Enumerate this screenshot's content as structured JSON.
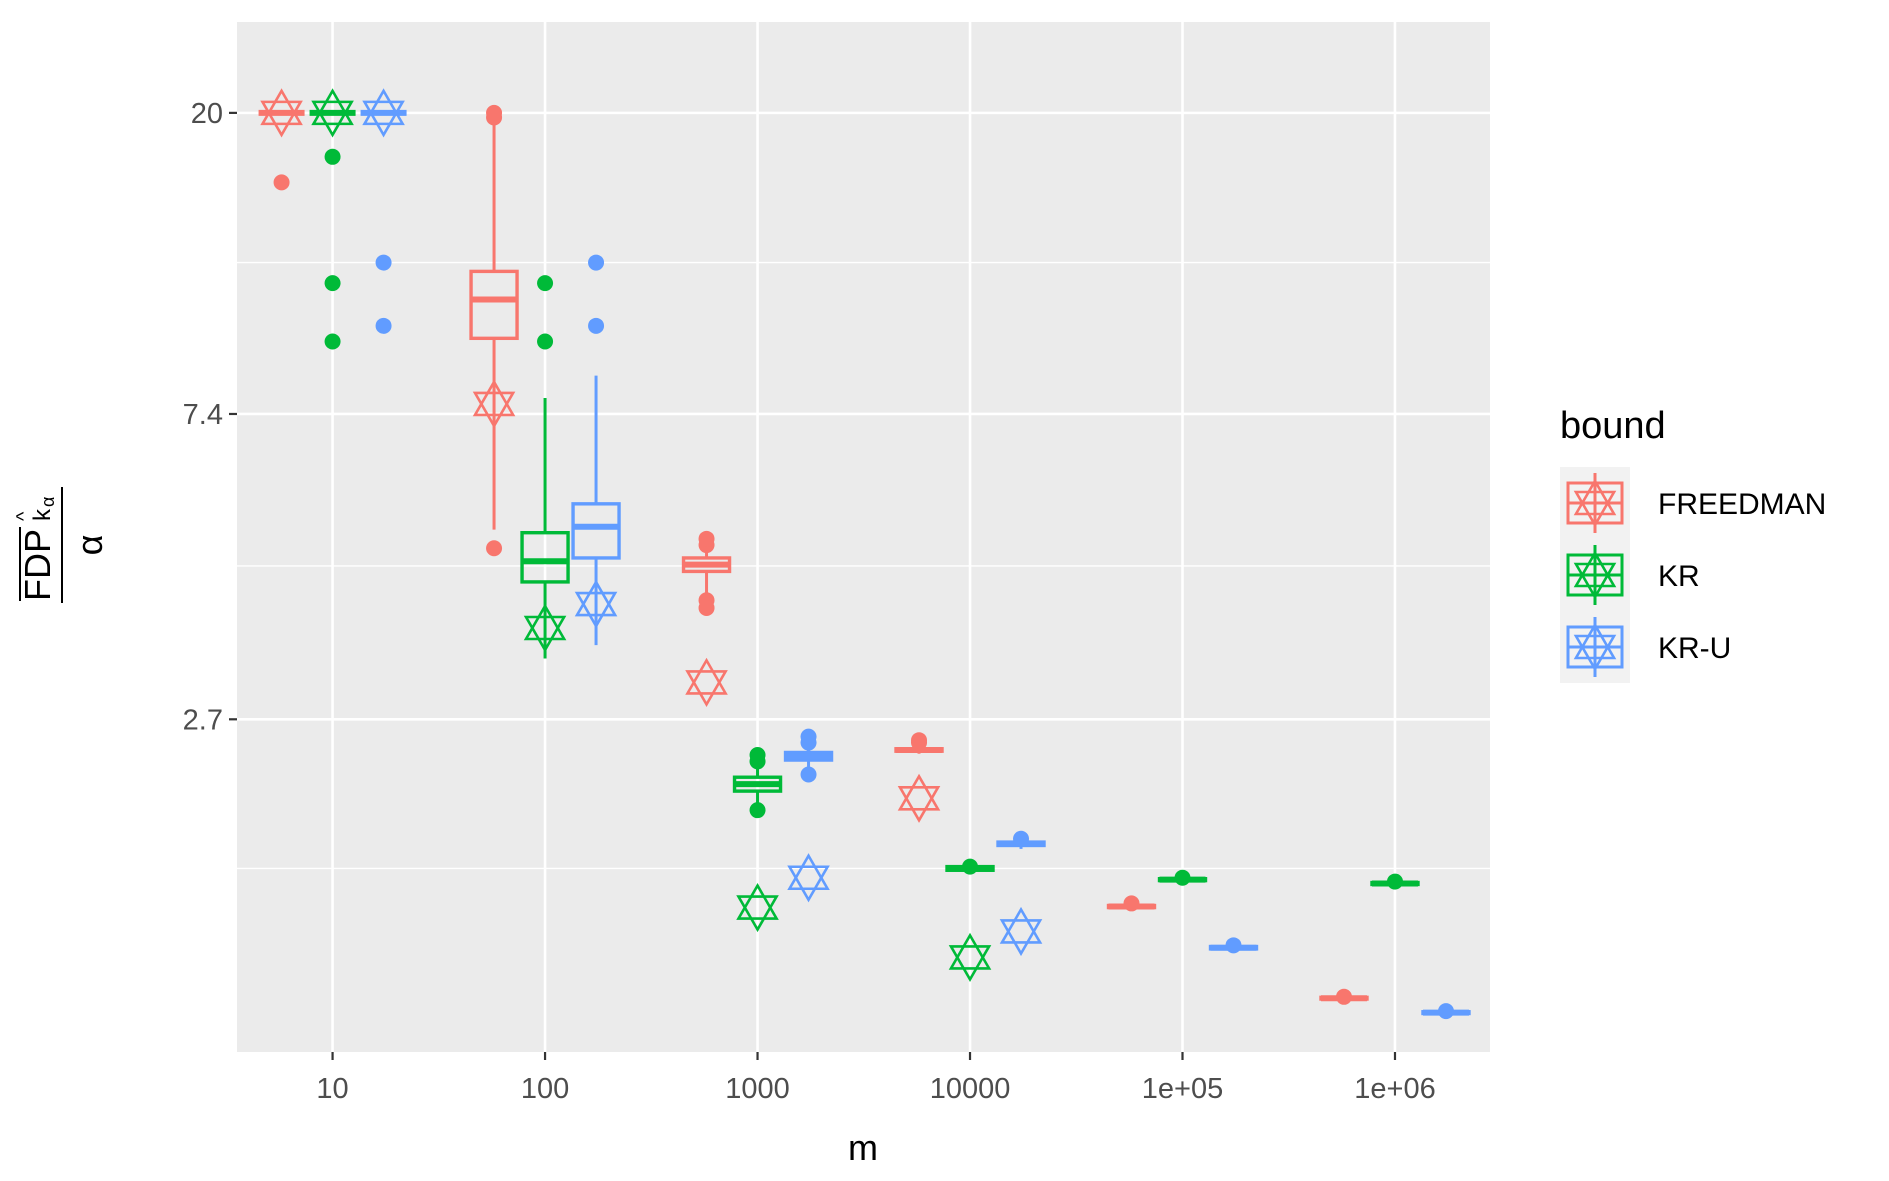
{
  "chart_data": {
    "type": "box",
    "xlabel": "m",
    "ylabel_parts": {
      "main": "FDP",
      "sub": "k",
      "subsub": "α",
      "hat": "^",
      "denominator": "α"
    },
    "x_scale": "log10",
    "y_scale": "log",
    "x_tick_labels": [
      {
        "x": 10,
        "label": "10"
      },
      {
        "x": 100,
        "label": "100"
      },
      {
        "x": 1000,
        "label": "1000"
      },
      {
        "x": 10000,
        "label": "10000"
      },
      {
        "x": 100000,
        "label": "1e+05"
      },
      {
        "x": 1000000,
        "label": "1e+06"
      }
    ],
    "y_tick_labels": [
      {
        "y": 2.7,
        "label": "2.7"
      },
      {
        "y": 7.4,
        "label": "7.4"
      },
      {
        "y": 20,
        "label": "20"
      }
    ],
    "y_minor": [
      4.48,
      12.2,
      1.65
    ],
    "xlim": [
      3.55,
      2800000
    ],
    "ylim": [
      0.9,
      27
    ],
    "grid": true,
    "legend": {
      "title": "bound",
      "position": "right",
      "entries": [
        {
          "name": "FREEDMAN",
          "color": "#F8766D"
        },
        {
          "name": "KR",
          "color": "#00BA38"
        },
        {
          "name": "KR-U",
          "color": "#619CFF"
        }
      ]
    },
    "boxes": [
      {
        "series": "FREEDMAN",
        "m": 10,
        "min": 20,
        "q1": 20,
        "median": 20,
        "q3": 20,
        "max": 20,
        "outliers": [
          15.9
        ],
        "star": 20
      },
      {
        "series": "KR",
        "m": 10,
        "min": 20,
        "q1": 20,
        "median": 20,
        "q3": 20,
        "max": 20,
        "outliers": [
          17.3,
          11.4,
          9.4
        ],
        "star": 20
      },
      {
        "series": "KR-U",
        "m": 10,
        "min": 20,
        "q1": 20,
        "median": 20,
        "q3": 20,
        "max": 20,
        "outliers": [
          12.2,
          9.9
        ],
        "star": 20
      },
      {
        "series": "FREEDMAN",
        "m": 100,
        "min": 5.05,
        "q1": 9.5,
        "median": 10.8,
        "q3": 11.85,
        "max": 19.9,
        "outliers": [
          4.75,
          19.7,
          20.0
        ],
        "star": 7.65
      },
      {
        "series": "KR",
        "m": 100,
        "min": 3.3,
        "q1": 4.25,
        "median": 4.55,
        "q3": 5.0,
        "max": 7.8,
        "outliers": [
          11.4,
          9.4
        ],
        "star": 3.65
      },
      {
        "series": "KR-U",
        "m": 100,
        "min": 3.45,
        "q1": 4.6,
        "median": 5.1,
        "q3": 5.5,
        "max": 8.4,
        "outliers": [
          12.2,
          9.9
        ],
        "star": 3.95
      },
      {
        "series": "FREEDMAN",
        "m": 1000,
        "min": 3.95,
        "q1": 4.4,
        "median": 4.5,
        "q3": 4.6,
        "max": 4.95,
        "outliers": [
          4.8,
          4.9,
          4.0,
          3.9
        ],
        "star": 3.05
      },
      {
        "series": "KR",
        "m": 1000,
        "min": 2.05,
        "q1": 2.13,
        "median": 2.18,
        "q3": 2.23,
        "max": 2.35,
        "outliers": [
          2.35,
          2.4,
          2.0
        ],
        "star": 1.45
      },
      {
        "series": "KR-U",
        "m": 1000,
        "min": 2.3,
        "q1": 2.36,
        "median": 2.39,
        "q3": 2.42,
        "max": 2.52,
        "outliers": [
          2.5,
          2.55,
          2.25
        ],
        "star": 1.6
      },
      {
        "series": "FREEDMAN",
        "m": 10000,
        "min": 2.41,
        "q1": 2.43,
        "median": 2.44,
        "q3": 2.45,
        "max": 2.5,
        "outliers": [
          2.5,
          2.52
        ],
        "star": 2.08
      },
      {
        "series": "KR",
        "m": 10000,
        "min": 1.63,
        "q1": 1.64,
        "median": 1.65,
        "q3": 1.66,
        "max": 1.67,
        "outliers": [
          1.66
        ],
        "star": 1.23
      },
      {
        "series": "KR-U",
        "m": 10000,
        "min": 1.76,
        "q1": 1.78,
        "median": 1.79,
        "q3": 1.8,
        "max": 1.83,
        "outliers": [
          1.82
        ],
        "star": 1.34
      },
      {
        "series": "FREEDMAN",
        "m": 100000,
        "min": 1.44,
        "q1": 1.45,
        "median": 1.455,
        "q3": 1.46,
        "max": 1.47,
        "outliers": [
          1.47
        ],
        "star": null
      },
      {
        "series": "KR",
        "m": 100000,
        "min": 1.58,
        "q1": 1.585,
        "median": 1.59,
        "q3": 1.595,
        "max": 1.6,
        "outliers": [
          1.6
        ],
        "star": null
      },
      {
        "series": "KR-U",
        "m": 100000,
        "min": 1.26,
        "q1": 1.265,
        "median": 1.27,
        "q3": 1.275,
        "max": 1.28,
        "outliers": [
          1.28
        ],
        "star": null
      },
      {
        "series": "FREEDMAN",
        "m": 1000000,
        "min": 1.07,
        "q1": 1.072,
        "median": 1.075,
        "q3": 1.078,
        "max": 1.08,
        "outliers": [
          1.08
        ],
        "star": null
      },
      {
        "series": "KR",
        "m": 1000000,
        "min": 1.56,
        "q1": 1.565,
        "median": 1.57,
        "q3": 1.575,
        "max": 1.58,
        "outliers": [
          1.58
        ],
        "star": null
      },
      {
        "series": "KR-U",
        "m": 1000000,
        "min": 1.02,
        "q1": 1.022,
        "median": 1.025,
        "q3": 1.028,
        "max": 1.03,
        "outliers": [
          1.03
        ],
        "star": null
      }
    ]
  }
}
